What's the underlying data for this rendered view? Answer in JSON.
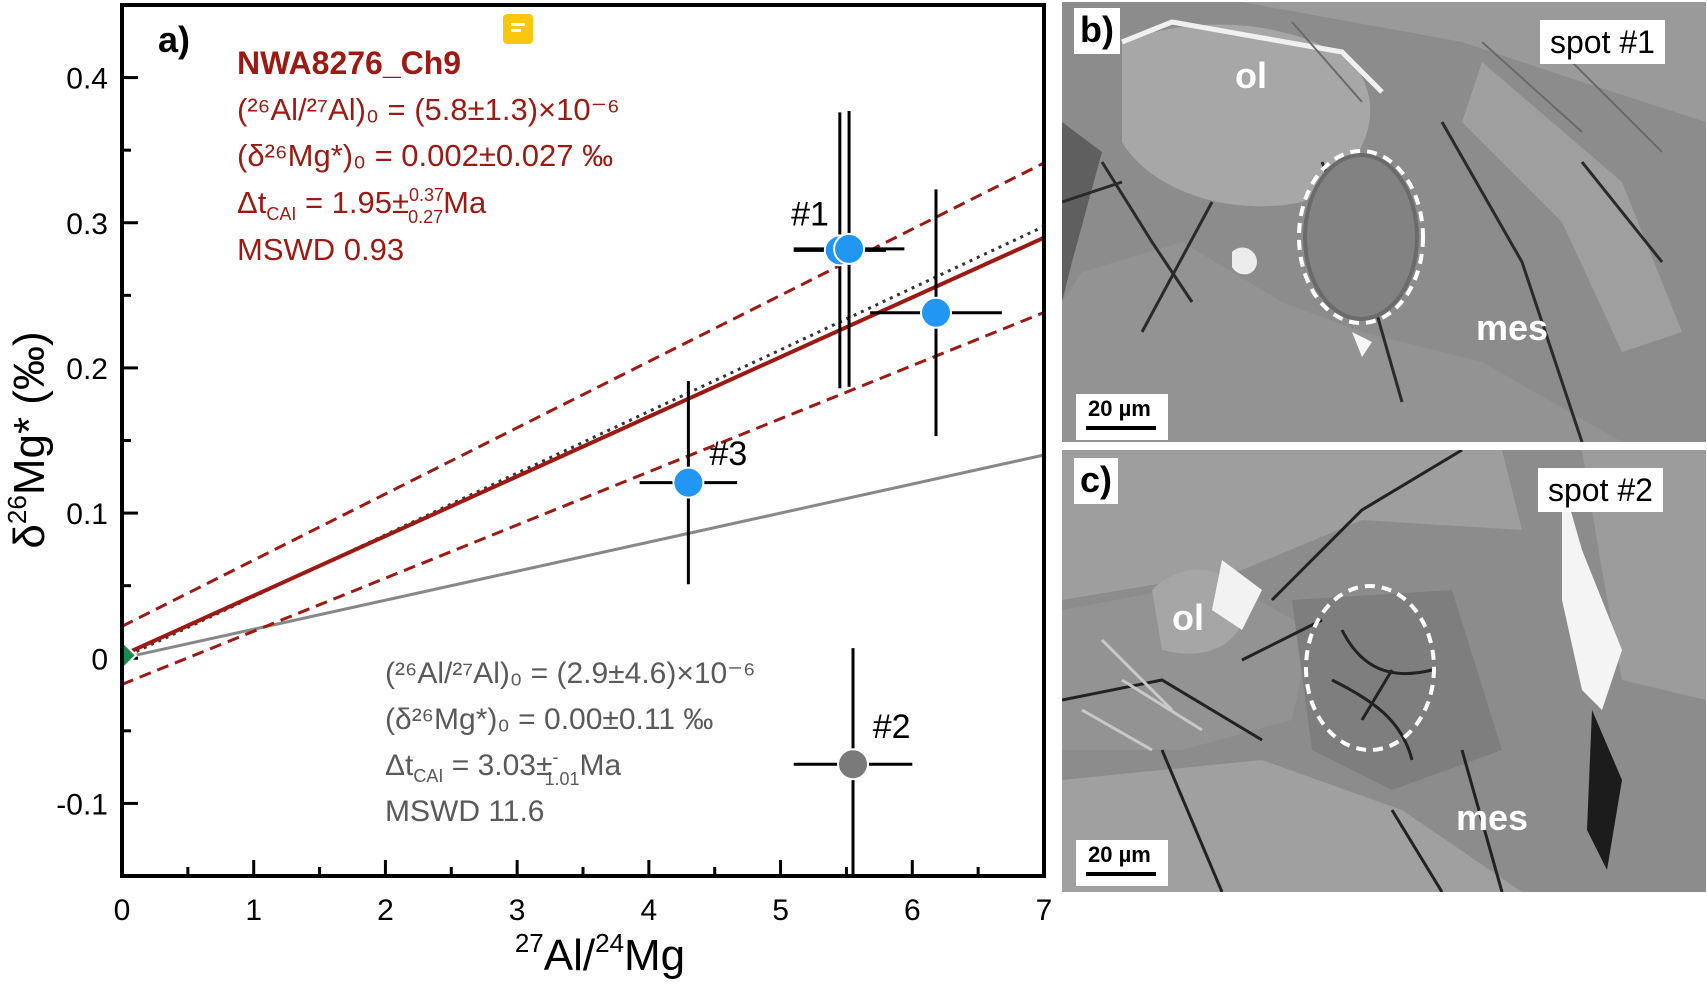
{
  "chart_data": {
    "type": "scatter",
    "panel_label": "a)",
    "xlabel_base": "Al/",
    "xlabel_sup1": "27",
    "xlabel_sup2": "24",
    "xlabel_end": "Mg",
    "ylabel_base": "δ",
    "ylabel_sup": "26",
    "ylabel_end": "Mg* (‰)",
    "xlim": [
      0,
      7
    ],
    "ylim": [
      -0.15,
      0.45
    ],
    "xticks": [
      0,
      1,
      2,
      3,
      4,
      5,
      6,
      7
    ],
    "yticks": [
      -0.1,
      0,
      0.1,
      0.2,
      0.3,
      0.4
    ],
    "ytick_labels": [
      "-0.1",
      "0",
      "0.1",
      "0.2",
      "0.3",
      "0.4"
    ],
    "points": [
      {
        "x": 5.45,
        "y": 0.281,
        "xerr": 0.35,
        "yerr": 0.095,
        "color": "#2196f3"
      },
      {
        "x": 5.52,
        "y": 0.282,
        "xerr": 0.42,
        "yerr": 0.095,
        "color": "#2196f3"
      },
      {
        "x": 6.18,
        "y": 0.238,
        "xerr": 0.5,
        "yerr": 0.085,
        "color": "#2196f3"
      },
      {
        "x": 4.3,
        "y": 0.121,
        "xerr": 0.37,
        "yerr": 0.07,
        "color": "#2196f3"
      },
      {
        "x": 5.55,
        "y": -0.073,
        "xerr": 0.45,
        "yerr": 0.08,
        "color": "#7a7a7a"
      }
    ],
    "origin_marker": {
      "x": 0,
      "y": 0.002,
      "color": "#1a8a52"
    },
    "point_labels": [
      {
        "text": "#1",
        "x": 5.08,
        "y": 0.298
      },
      {
        "text": "#3",
        "x": 4.46,
        "y": 0.133
      },
      {
        "text": "#2",
        "x": 5.7,
        "y": -0.055
      }
    ],
    "fit_main": {
      "intercept": 0.002,
      "slope": 0.0411,
      "color": "#9c1a13"
    },
    "fit_upper": {
      "intercept": 0.022,
      "slope": 0.0456,
      "color": "#9c1a13"
    },
    "fit_lower": {
      "intercept": -0.018,
      "slope": 0.0366,
      "color": "#9c1a13"
    },
    "fit_dotted": {
      "intercept": 0.0,
      "slope": 0.0425,
      "color": "#333333"
    },
    "fit_gray": {
      "intercept": 0.0,
      "slope": 0.02,
      "color": "#888888"
    },
    "annotation_red": {
      "title": "NWA8276_Ch9",
      "line1": "(²⁶Al/²⁷Al)₀ = (5.8±1.3)×10⁻⁶",
      "line2": "(δ²⁶Mg*)₀ = 0.002±0.027 ‰",
      "line3_pre": "Δt",
      "line3_sub": "CAI",
      "line3_mid": " = 1.95±",
      "line3_sup": "0.37",
      "line3_sub2": "0.27",
      "line3_end": "Ma",
      "line4": "MSWD 0.93",
      "color": "#9c1a13"
    },
    "annotation_gray": {
      "line1": "(²⁶Al/²⁷Al)₀ = (2.9±4.6)×10⁻⁶",
      "line2": "(δ²⁶Mg*)₀ = 0.00±0.11 ‰",
      "line3_pre": "Δt",
      "line3_sub": "CAI",
      "line3_mid": " = 3.03±",
      "line3_sup": "-",
      "line3_sub2": "1.01",
      "line3_end": "Ma",
      "line4": "MSWD 11.6",
      "color": "#5a5a5a"
    }
  },
  "panel_b": {
    "label": "b)",
    "spot": "spot #1",
    "ol_label": "ol",
    "mes_label": "mes",
    "scale_label": "20 µm"
  },
  "panel_c": {
    "label": "c)",
    "spot": "spot #2",
    "ol_label": "ol",
    "mes_label": "mes",
    "scale_label": "20 µm"
  }
}
